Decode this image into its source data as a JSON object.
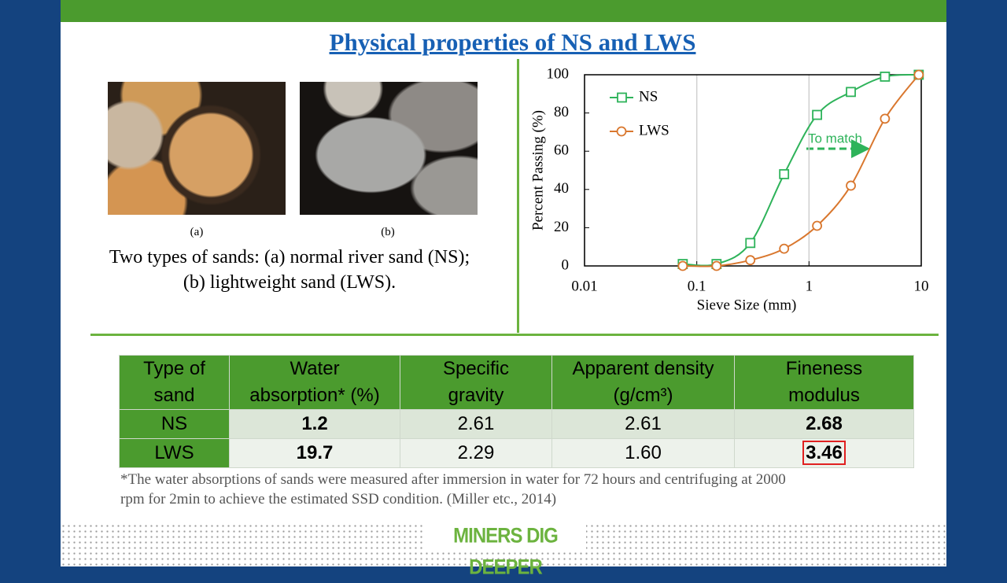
{
  "slide": {
    "title": "Physical properties of NS and LWS",
    "photo_captions": [
      "(a)",
      "(b)"
    ],
    "caption_lines": [
      "Two types of sands: (a) normal river sand (NS);",
      "(b) lightweight sand (LWS)."
    ],
    "footnote_lines": [
      "*The water absorptions of sands were measured after immersion in water for 72 hours and centrifuging at 2000",
      "rpm for 2min to achieve the estimated SSD condition. (Miller etc., 2014)"
    ],
    "footer": "MINERS DIG DEEPER"
  },
  "table": {
    "header": [
      [
        "Type of",
        "sand"
      ],
      [
        "Water",
        "absorption* (%)"
      ],
      [
        "Specific",
        "gravity"
      ],
      [
        "Apparent density",
        "(g/cm³)"
      ],
      [
        "Fineness",
        "modulus"
      ]
    ],
    "rows": [
      [
        "NS",
        "1.2",
        "2.61",
        "2.61",
        "2.68"
      ],
      [
        "LWS",
        "19.7",
        "2.29",
        "1.60",
        "3.46"
      ]
    ]
  },
  "chart_data": {
    "type": "line",
    "xlabel": "Sieve Size (mm)",
    "ylabel": "Percent Passing (%)",
    "x": [
      0.075,
      0.15,
      0.3,
      0.6,
      1.18,
      2.36,
      4.75,
      9.5
    ],
    "series": [
      {
        "name": "NS",
        "color": "#2eb35a",
        "marker": "square",
        "values": [
          1,
          1,
          12,
          48,
          79,
          91,
          99,
          100
        ]
      },
      {
        "name": "LWS",
        "color": "#d9772e",
        "marker": "circle",
        "values": [
          0,
          0,
          3,
          9,
          21,
          42,
          77,
          100
        ]
      }
    ],
    "xscale": "log",
    "xlim": [
      0.01,
      10
    ],
    "xticks": [
      0.01,
      0.1,
      1,
      10
    ],
    "ylim": [
      0,
      100
    ],
    "yticks": [
      0,
      20,
      40,
      60,
      80,
      100
    ],
    "xgrid": true,
    "legend": "upper left",
    "annotation": "To match"
  }
}
